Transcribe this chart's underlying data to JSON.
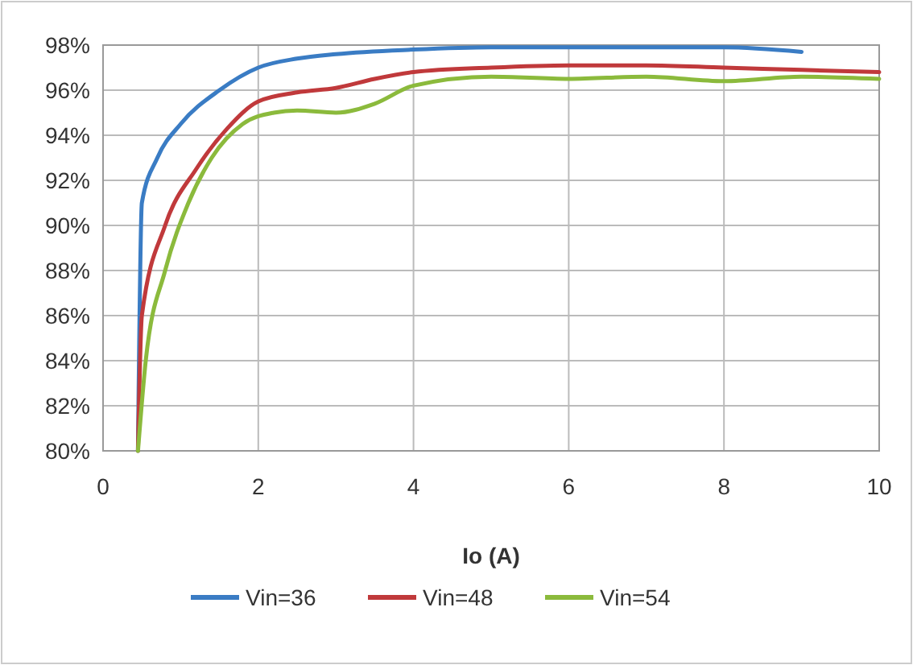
{
  "chart_data": {
    "type": "line",
    "xlabel": "Io (A)",
    "xlim": [
      0,
      10
    ],
    "xticks": [
      0,
      2,
      4,
      6,
      8,
      10
    ],
    "ylim": [
      80,
      98
    ],
    "yticks": [
      {
        "value": 80,
        "label": "80%"
      },
      {
        "value": 82,
        "label": "82%"
      },
      {
        "value": 84,
        "label": "84%"
      },
      {
        "value": 86,
        "label": "86%"
      },
      {
        "value": 88,
        "label": "88%"
      },
      {
        "value": 90,
        "label": "90%"
      },
      {
        "value": 92,
        "label": "92%"
      },
      {
        "value": 94,
        "label": "94%"
      },
      {
        "value": 96,
        "label": "96%"
      },
      {
        "value": 98,
        "label": "98%"
      }
    ],
    "grid": true,
    "legend": "bottom",
    "marker": "none",
    "line_style": "solid",
    "series": [
      {
        "name": "Vin=36",
        "color": "#3a7cc4",
        "x": [
          0.45,
          0.5,
          0.7,
          1,
          1.5,
          2,
          2.5,
          3,
          4,
          5,
          6,
          7,
          8,
          9
        ],
        "values": [
          80,
          91,
          93,
          94.5,
          96,
          97,
          97.4,
          97.6,
          97.8,
          97.9,
          97.9,
          97.9,
          97.9,
          97.7
        ]
      },
      {
        "name": "Vin=48",
        "color": "#c0393b",
        "x": [
          0.45,
          0.5,
          0.8,
          1.2,
          1.6,
          2,
          2.5,
          3,
          3.5,
          4,
          5,
          6,
          7,
          8,
          9,
          10
        ],
        "values": [
          80,
          86,
          90,
          92.5,
          94.3,
          95.5,
          95.9,
          96.1,
          96.5,
          96.8,
          97,
          97.1,
          97.1,
          97,
          96.9,
          96.8
        ]
      },
      {
        "name": "Vin=54",
        "color": "#8bba3c",
        "x": [
          0.45,
          0.55,
          0.8,
          1.1,
          1.4,
          1.8,
          2.2,
          2.5,
          3,
          3.5,
          4,
          5,
          6,
          7,
          8,
          9,
          10
        ],
        "values": [
          80,
          84,
          88,
          91,
          93,
          94.5,
          95,
          95.1,
          95,
          95.4,
          96.2,
          96.6,
          96.5,
          96.6,
          96.4,
          96.6,
          96.5
        ]
      }
    ]
  }
}
